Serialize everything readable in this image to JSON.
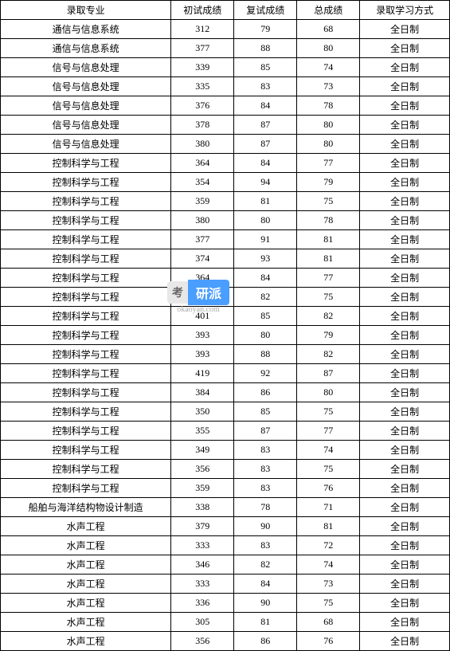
{
  "table": {
    "columns": [
      "录取专业",
      "初试成绩",
      "复试成绩",
      "总成绩",
      "录取学习方式"
    ],
    "rows": [
      [
        "通信与信息系统",
        "312",
        "79",
        "68",
        "全日制"
      ],
      [
        "通信与信息系统",
        "377",
        "88",
        "80",
        "全日制"
      ],
      [
        "信号与信息处理",
        "339",
        "85",
        "74",
        "全日制"
      ],
      [
        "信号与信息处理",
        "335",
        "83",
        "73",
        "全日制"
      ],
      [
        "信号与信息处理",
        "376",
        "84",
        "78",
        "全日制"
      ],
      [
        "信号与信息处理",
        "378",
        "87",
        "80",
        "全日制"
      ],
      [
        "信号与信息处理",
        "380",
        "87",
        "80",
        "全日制"
      ],
      [
        "控制科学与工程",
        "364",
        "84",
        "77",
        "全日制"
      ],
      [
        "控制科学与工程",
        "354",
        "94",
        "79",
        "全日制"
      ],
      [
        "控制科学与工程",
        "359",
        "81",
        "75",
        "全日制"
      ],
      [
        "控制科学与工程",
        "380",
        "80",
        "78",
        "全日制"
      ],
      [
        "控制科学与工程",
        "377",
        "91",
        "81",
        "全日制"
      ],
      [
        "控制科学与工程",
        "374",
        "93",
        "81",
        "全日制"
      ],
      [
        "控制科学与工程",
        "364",
        "84",
        "77",
        "全日制"
      ],
      [
        "控制科学与工程",
        "356",
        "82",
        "75",
        "全日制"
      ],
      [
        "控制科学与工程",
        "401",
        "85",
        "82",
        "全日制"
      ],
      [
        "控制科学与工程",
        "393",
        "80",
        "79",
        "全日制"
      ],
      [
        "控制科学与工程",
        "393",
        "88",
        "82",
        "全日制"
      ],
      [
        "控制科学与工程",
        "419",
        "92",
        "87",
        "全日制"
      ],
      [
        "控制科学与工程",
        "384",
        "86",
        "80",
        "全日制"
      ],
      [
        "控制科学与工程",
        "350",
        "85",
        "75",
        "全日制"
      ],
      [
        "控制科学与工程",
        "355",
        "87",
        "77",
        "全日制"
      ],
      [
        "控制科学与工程",
        "349",
        "83",
        "74",
        "全日制"
      ],
      [
        "控制科学与工程",
        "356",
        "83",
        "75",
        "全日制"
      ],
      [
        "控制科学与工程",
        "359",
        "83",
        "76",
        "全日制"
      ],
      [
        "船舶与海洋结构物设计制造",
        "338",
        "78",
        "71",
        "全日制"
      ],
      [
        "水声工程",
        "379",
        "90",
        "81",
        "全日制"
      ],
      [
        "水声工程",
        "333",
        "83",
        "72",
        "全日制"
      ],
      [
        "水声工程",
        "346",
        "82",
        "74",
        "全日制"
      ],
      [
        "水声工程",
        "333",
        "84",
        "73",
        "全日制"
      ],
      [
        "水声工程",
        "336",
        "90",
        "75",
        "全日制"
      ],
      [
        "水声工程",
        "305",
        "81",
        "68",
        "全日制"
      ],
      [
        "水声工程",
        "356",
        "86",
        "76",
        "全日制"
      ]
    ]
  },
  "watermark": {
    "badge_left": "考",
    "badge_right": "研派",
    "url": "okaoyan.com"
  },
  "colors": {
    "border": "#000000",
    "background": "#ffffff",
    "text": "#000000",
    "watermark_badge_left_bg": "#e8e8e8",
    "watermark_badge_left_text": "#666666",
    "watermark_badge_right_bg": "#4a9eff",
    "watermark_badge_right_text": "#ffffff",
    "watermark_url_text": "#aaaaaa"
  }
}
